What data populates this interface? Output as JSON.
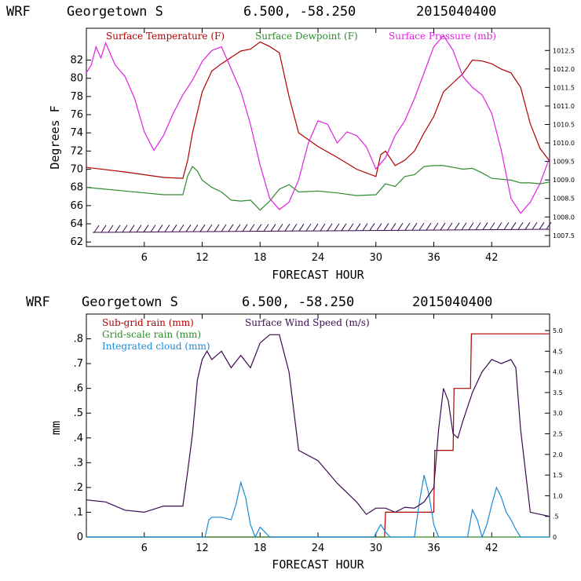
{
  "chart_data": [
    {
      "type": "line",
      "header": {
        "model": "WRF",
        "location": "Georgetown S",
        "coords": "6.500, -58.250",
        "init": "2015040400"
      },
      "xlabel": "FORECAST HOUR",
      "ylabel": "Degrees F",
      "xlim": [
        0,
        48
      ],
      "ylim": [
        61.5,
        85.5
      ],
      "x_ticks": [
        "6",
        "12",
        "18",
        "24",
        "30",
        "36",
        "42"
      ],
      "x_tick_values": [
        6,
        12,
        18,
        24,
        30,
        36,
        42
      ],
      "y_ticks": [
        "62",
        "64",
        "66",
        "68",
        "70",
        "72",
        "74",
        "76",
        "78",
        "80",
        "82"
      ],
      "y_tick_values": [
        62,
        64,
        66,
        68,
        70,
        72,
        74,
        76,
        78,
        80,
        82
      ],
      "y2_lim": [
        1007.2,
        1013.1
      ],
      "y2_ticks": [
        "1007.5",
        "1008.0",
        "1008.5",
        "1009.0",
        "1009.5",
        "1010.0",
        "1010.5",
        "1011.0",
        "1011.5",
        "1012.0",
        "1012.5"
      ],
      "y2_tick_values": [
        1007.5,
        1008.0,
        1008.5,
        1009.0,
        1009.5,
        1010.0,
        1010.5,
        1011.0,
        1011.5,
        1012.0,
        1012.5
      ],
      "series": [
        {
          "name": "Surface Temperature (F)",
          "color": "#b00000",
          "axis": "left",
          "x": [
            0,
            4,
            8,
            10,
            10.5,
            11,
            12,
            13,
            14,
            15,
            16,
            17,
            18,
            19,
            20,
            21,
            22,
            24,
            26,
            28,
            30,
            30.5,
            31,
            32,
            33,
            34,
            35,
            36,
            37,
            38,
            39,
            40,
            41,
            42,
            43,
            44,
            45,
            46,
            47,
            48
          ],
          "values": [
            70.2,
            69.7,
            69.1,
            69.0,
            71.0,
            74.0,
            78.5,
            80.8,
            81.6,
            82.3,
            83.0,
            83.2,
            84.0,
            83.5,
            82.8,
            78.0,
            74.0,
            72.5,
            71.3,
            70.0,
            69.2,
            71.6,
            72.0,
            70.4,
            71.0,
            72.0,
            74.0,
            75.8,
            78.5,
            79.5,
            80.5,
            82.0,
            81.9,
            81.6,
            81.0,
            80.6,
            79.0,
            75.0,
            72.3,
            70.9
          ]
        },
        {
          "name": "Surface Dewpoint (F)",
          "color": "#2e8b2e",
          "axis": "left",
          "x": [
            0,
            4,
            8,
            10,
            10.5,
            11,
            11.5,
            12,
            13,
            14,
            15,
            16,
            17,
            18,
            19,
            20,
            21,
            22,
            24,
            26,
            28,
            30,
            31,
            32,
            33,
            34,
            35,
            36,
            37,
            38,
            39,
            40,
            41,
            42,
            43,
            44,
            45,
            46,
            47,
            48
          ],
          "values": [
            68.0,
            67.6,
            67.2,
            67.2,
            69.3,
            70.3,
            69.8,
            68.8,
            68.0,
            67.5,
            66.6,
            66.5,
            66.6,
            65.5,
            66.5,
            67.8,
            68.3,
            67.5,
            67.6,
            67.4,
            67.1,
            67.2,
            68.4,
            68.1,
            69.2,
            69.4,
            70.3,
            70.4,
            70.4,
            70.2,
            70.0,
            70.1,
            69.6,
            69.0,
            68.9,
            68.8,
            68.5,
            68.5,
            68.4,
            68.6
          ]
        },
        {
          "name": "Surface Pressure (mb)",
          "color": "#e020e0",
          "axis": "right",
          "x": [
            0,
            0.5,
            1,
            1.5,
            2,
            2.5,
            3,
            4,
            5,
            6,
            7,
            8,
            9,
            10,
            11,
            12,
            13,
            14,
            15,
            16,
            17,
            18,
            19,
            20,
            21,
            22,
            23,
            24,
            25,
            26,
            27,
            28,
            29,
            30,
            31,
            32,
            33,
            34,
            35,
            36,
            37,
            38,
            39,
            40,
            41,
            42,
            43,
            44,
            45,
            46,
            47,
            48
          ],
          "values": [
            1011.9,
            1012.1,
            1012.6,
            1012.3,
            1012.7,
            1012.4,
            1012.1,
            1011.8,
            1011.2,
            1010.3,
            1009.8,
            1010.2,
            1010.8,
            1011.3,
            1011.7,
            1012.2,
            1012.5,
            1012.6,
            1012.0,
            1011.4,
            1010.5,
            1009.4,
            1008.5,
            1008.2,
            1008.4,
            1009.0,
            1010.0,
            1010.6,
            1010.5,
            1010.0,
            1010.3,
            1010.2,
            1009.9,
            1009.3,
            1009.6,
            1010.2,
            1010.6,
            1011.2,
            1011.9,
            1012.6,
            1012.9,
            1012.5,
            1011.8,
            1011.5,
            1011.3,
            1010.8,
            1009.8,
            1008.5,
            1008.1,
            1008.4,
            1008.9,
            1009.6
          ]
        }
      ],
      "wind_barbs_note": "hatched wind barbs along bottom near 63-64 F"
    },
    {
      "type": "line",
      "header": {
        "model": "WRF",
        "location": "Georgetown S",
        "coords": "6.500, -58.250",
        "init": "2015040400"
      },
      "xlabel": "FORECAST HOUR",
      "ylabel": "mm",
      "xlim": [
        0,
        48
      ],
      "ylim": [
        0,
        0.9
      ],
      "x_ticks": [
        "6",
        "12",
        "18",
        "24",
        "30",
        "36",
        "42"
      ],
      "x_tick_values": [
        6,
        12,
        18,
        24,
        30,
        36,
        42
      ],
      "y_ticks": [
        "0",
        ".1",
        ".2",
        ".3",
        ".4",
        ".5",
        ".6",
        ".7",
        ".8"
      ],
      "y_tick_values": [
        0,
        0.1,
        0.2,
        0.3,
        0.4,
        0.5,
        0.6,
        0.7,
        0.8
      ],
      "y2_lim": [
        0,
        5.4
      ],
      "y2_ticks": [
        "0",
        ".5",
        "1.0",
        "1.5",
        "2.0",
        "2.5",
        "3.0",
        "3.5",
        "4.0",
        "4.5",
        "5.0"
      ],
      "y2_tick_values": [
        0,
        0.5,
        1.0,
        1.5,
        2.0,
        2.5,
        3.0,
        3.5,
        4.0,
        4.5,
        5.0
      ],
      "series": [
        {
          "name": "Sub-grid rain (mm)",
          "color": "#b00000",
          "axis": "left",
          "x": [
            0,
            30.9,
            31,
            36,
            36.1,
            38,
            38.1,
            39.8,
            39.9,
            48
          ],
          "values": [
            0,
            0,
            0.1,
            0.1,
            0.35,
            0.35,
            0.6,
            0.6,
            0.82,
            0.82
          ]
        },
        {
          "name": "Grid-scale rain (mm)",
          "color": "#2e8b2e",
          "axis": "left",
          "x": [
            0,
            48
          ],
          "values": [
            0,
            0
          ]
        },
        {
          "name": "Integrated cloud (mm)",
          "color": "#1a8ad6",
          "axis": "left",
          "x": [
            0,
            12.3,
            12.7,
            13,
            14,
            15,
            15.5,
            16,
            16.5,
            17,
            17.5,
            18,
            18.5,
            19,
            29.8,
            30.5,
            31,
            31.5,
            32,
            34,
            34.5,
            35,
            35.5,
            36,
            36.5,
            37,
            39.5,
            40,
            40.5,
            41,
            41.5,
            42,
            42.5,
            43,
            43.5,
            44,
            44.5,
            45,
            48
          ],
          "values": [
            0,
            0,
            0.07,
            0.08,
            0.08,
            0.07,
            0.13,
            0.22,
            0.16,
            0.05,
            0.0,
            0.04,
            0.02,
            0,
            0,
            0.05,
            0.02,
            0,
            0,
            0,
            0.14,
            0.25,
            0.17,
            0.05,
            0,
            0,
            0,
            0.11,
            0.07,
            0,
            0.05,
            0.13,
            0.2,
            0.16,
            0.1,
            0.07,
            0.03,
            0,
            0
          ]
        },
        {
          "name": "Surface Wind Speed (m/s)",
          "color": "#3b0a4f",
          "axis": "right",
          "x": [
            0,
            2,
            4,
            6,
            8,
            10,
            10.5,
            11,
            11.5,
            12,
            12.5,
            13,
            14,
            15,
            16,
            17,
            18,
            19,
            20,
            21,
            22,
            24,
            26,
            28,
            29,
            30,
            31,
            32,
            33,
            34,
            35,
            36,
            36.5,
            37,
            37.5,
            38,
            38.5,
            39,
            40,
            41,
            42,
            43,
            44,
            44.5,
            45,
            46,
            47,
            48
          ],
          "values": [
            0.9,
            0.85,
            0.65,
            0.6,
            0.75,
            0.75,
            1.6,
            2.5,
            3.8,
            4.3,
            4.5,
            4.3,
            4.5,
            4.1,
            4.4,
            4.1,
            4.7,
            4.9,
            4.9,
            4.0,
            2.1,
            1.85,
            1.3,
            0.85,
            0.55,
            0.7,
            0.7,
            0.6,
            0.72,
            0.7,
            0.85,
            1.2,
            2.6,
            3.6,
            3.3,
            2.5,
            2.4,
            2.8,
            3.5,
            4.0,
            4.3,
            4.2,
            4.3,
            4.1,
            2.6,
            0.6,
            0.55,
            0.5
          ]
        }
      ]
    }
  ]
}
